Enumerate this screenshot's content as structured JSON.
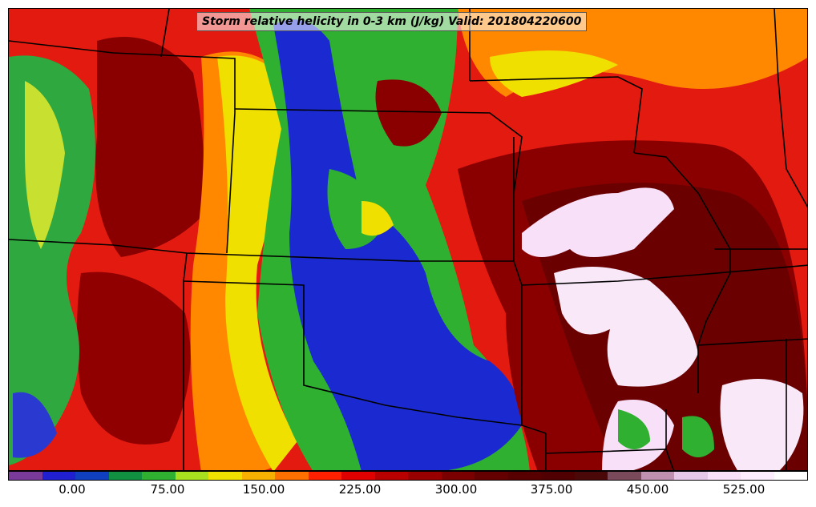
{
  "title": "Storm relative helicity in 0-3 km (J/kg) Valid: 201804220600",
  "colorbar": {
    "colors": [
      "#7a3a9a",
      "#2020d0",
      "#1040c0",
      "#109040",
      "#30b030",
      "#a8e020",
      "#f0e000",
      "#f8b000",
      "#ff7000",
      "#ff2000",
      "#e00000",
      "#b80000",
      "#980000",
      "#7a0000",
      "#640000",
      "#580000",
      "#500000",
      "#4a0808",
      "#7a4a5a",
      "#c090b0",
      "#e8c8e8",
      "#f8e0f8",
      "#ffeeff",
      "#ffffff"
    ],
    "tick_labels": [
      "0.00",
      "75.00",
      "150.00",
      "225.00",
      "300.00",
      "375.00",
      "450.00",
      "525.00"
    ]
  },
  "map": {
    "background_color": "#e41a10",
    "regions": [
      {
        "name": "colorado-rockies",
        "color": "#30b030"
      },
      {
        "name": "plains-low-helicity",
        "color": "#1a2ad0"
      },
      {
        "name": "high-helicity-core",
        "color": "#f8e0f8"
      }
    ]
  }
}
